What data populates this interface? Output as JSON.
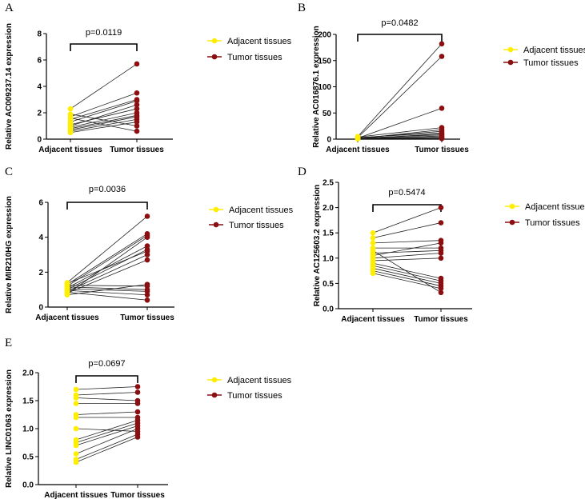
{
  "colors": {
    "adjacent": "#ffee00",
    "tumor": "#8b0e10",
    "line": "#222222",
    "axis": "#000000"
  },
  "chart_data": [
    {
      "panel": "A",
      "type": "scatter",
      "ylabel": "Relative AC009237.14  expression",
      "categories": [
        "Adjacent tissues",
        "Tumor tissues"
      ],
      "ylim": [
        0,
        8
      ],
      "yticks": [
        0,
        2,
        4,
        6,
        8
      ],
      "p_value": "p=0.0119",
      "legend": [
        "Adjacent tissues",
        "Tumor tissues"
      ],
      "adjacent": [
        2.3,
        1.7,
        1.5,
        1.3,
        1.1,
        0.9,
        0.8,
        0.7,
        0.6,
        0.5,
        1.9,
        1.6,
        1.0
      ],
      "tumor": [
        5.7,
        3.5,
        3.0,
        2.9,
        2.3,
        2.0,
        1.8,
        1.7,
        1.5,
        1.3,
        1.0,
        0.6,
        2.6
      ]
    },
    {
      "panel": "B",
      "type": "scatter",
      "ylabel": "Relative AC016876.1  expression",
      "categories": [
        "Adjacent tissues",
        "Tumor tissues"
      ],
      "ylim": [
        0,
        200
      ],
      "yticks": [
        0,
        50,
        100,
        150,
        200
      ],
      "p_value": "p=0.0482",
      "legend": [
        "Adjacent tissues",
        "Tumor tissues"
      ],
      "adjacent": [
        5,
        3,
        2,
        4,
        1,
        2,
        3,
        1,
        2,
        1,
        0.5,
        3,
        1.5
      ],
      "tumor": [
        182,
        158,
        59,
        22,
        18,
        15,
        12,
        10,
        8,
        6,
        4,
        2,
        1
      ]
    },
    {
      "panel": "C",
      "type": "scatter",
      "ylabel": "Relative MIR210HG expression",
      "categories": [
        "Adjacent tissues",
        "Tumor tissues"
      ],
      "ylim": [
        0,
        6
      ],
      "yticks": [
        0,
        2,
        4,
        6
      ],
      "p_value": "p=0.0036",
      "legend": [
        "Adjacent tissues",
        "Tumor tissues"
      ],
      "adjacent": [
        1.4,
        1.3,
        1.2,
        1.1,
        1.0,
        0.9,
        0.8,
        0.7,
        1.25,
        1.15,
        1.05,
        0.95,
        0.85,
        0.75,
        1.35
      ],
      "tumor": [
        5.2,
        4.2,
        4.1,
        3.5,
        3.3,
        3.0,
        2.7,
        1.3,
        1.2,
        1.0,
        0.9,
        0.7,
        0.4,
        4.0,
        3.2
      ]
    },
    {
      "panel": "D",
      "type": "scatter",
      "ylabel": "Relative AC125603.2  expression",
      "categories": [
        "Adjacent tissues",
        "Tumor tissues"
      ],
      "ylim": [
        0,
        2.5
      ],
      "yticks": [
        0.0,
        0.5,
        1.0,
        1.5,
        2.0,
        2.5
      ],
      "p_value": "p=0.5474",
      "legend": [
        "Adjacent tissues",
        "Tumor tissues"
      ],
      "adjacent": [
        1.5,
        1.4,
        1.3,
        1.2,
        1.1,
        1.0,
        0.95,
        0.9,
        0.85,
        0.8,
        0.75,
        0.7,
        1.15,
        1.05
      ],
      "tumor": [
        2.0,
        1.7,
        1.35,
        1.2,
        1.15,
        1.1,
        1.0,
        0.6,
        0.55,
        0.5,
        0.45,
        0.4,
        0.32,
        1.3
      ]
    },
    {
      "panel": "E",
      "type": "scatter",
      "ylabel": "Relative LINC01063  expression",
      "categories": [
        "Adjacent tissues",
        "Tumor tissues"
      ],
      "ylim": [
        0,
        2.0
      ],
      "yticks": [
        0.0,
        0.5,
        1.0,
        1.5,
        2.0
      ],
      "p_value": "p=0.0697",
      "legend": [
        "Adjacent tissues",
        "Tumor tissues"
      ],
      "adjacent": [
        1.7,
        1.6,
        1.55,
        1.45,
        1.25,
        1.2,
        0.8,
        0.75,
        0.7,
        0.55,
        0.45,
        0.4,
        1.0
      ],
      "tumor": [
        1.75,
        1.65,
        1.5,
        1.45,
        1.3,
        1.2,
        1.15,
        1.1,
        1.05,
        1.0,
        0.9,
        0.85,
        0.95
      ]
    }
  ]
}
